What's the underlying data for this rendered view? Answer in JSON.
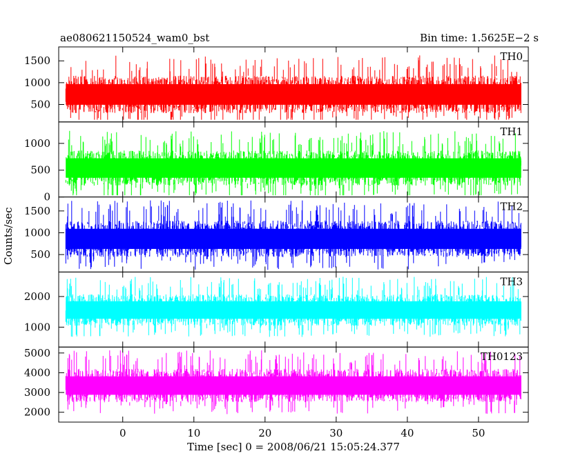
{
  "header": {
    "title": "ae080621150524_wam0_bst",
    "bin_time": "Bin time: 1.5625E−2 s"
  },
  "chart_data": {
    "type": "line",
    "xlabel": "Time [sec] 0 = 2008/06/21 15:05:24.377",
    "ylabel": "Counts/sec",
    "xlim": [
      -9,
      57
    ],
    "data_range_x": [
      -8,
      56
    ],
    "x_ticks": [
      0,
      10,
      20,
      30,
      40,
      50
    ],
    "panels": [
      {
        "name": "TH0",
        "color": "#ff0000",
        "ylim": [
          100,
          1820
        ],
        "yticks": [
          500,
          1000,
          1500
        ],
        "level": 730,
        "spread": 430,
        "min": 150,
        "max": 1800
      },
      {
        "name": "TH1",
        "color": "#00ff00",
        "ylim": [
          0,
          1400
        ],
        "yticks": [
          0,
          500,
          1000
        ],
        "level": 540,
        "spread": 330,
        "min": 30,
        "max": 1350
      },
      {
        "name": "TH2",
        "color": "#0000ff",
        "ylim": [
          100,
          1820
        ],
        "yticks": [
          500,
          1000,
          1500
        ],
        "level": 860,
        "spread": 420,
        "min": 150,
        "max": 1800
      },
      {
        "name": "TH3",
        "color": "#00ffff",
        "ylim": [
          350,
          2800
        ],
        "yticks": [
          1000,
          2000
        ],
        "level": 1560,
        "spread": 520,
        "min": 450,
        "max": 2800
      },
      {
        "name": "TH0123",
        "color": "#ff00ff",
        "ylim": [
          1500,
          5300
        ],
        "yticks": [
          2000,
          3000,
          4000,
          5000
        ],
        "level": 3350,
        "spread": 850,
        "min": 1500,
        "max": 5300
      }
    ]
  }
}
